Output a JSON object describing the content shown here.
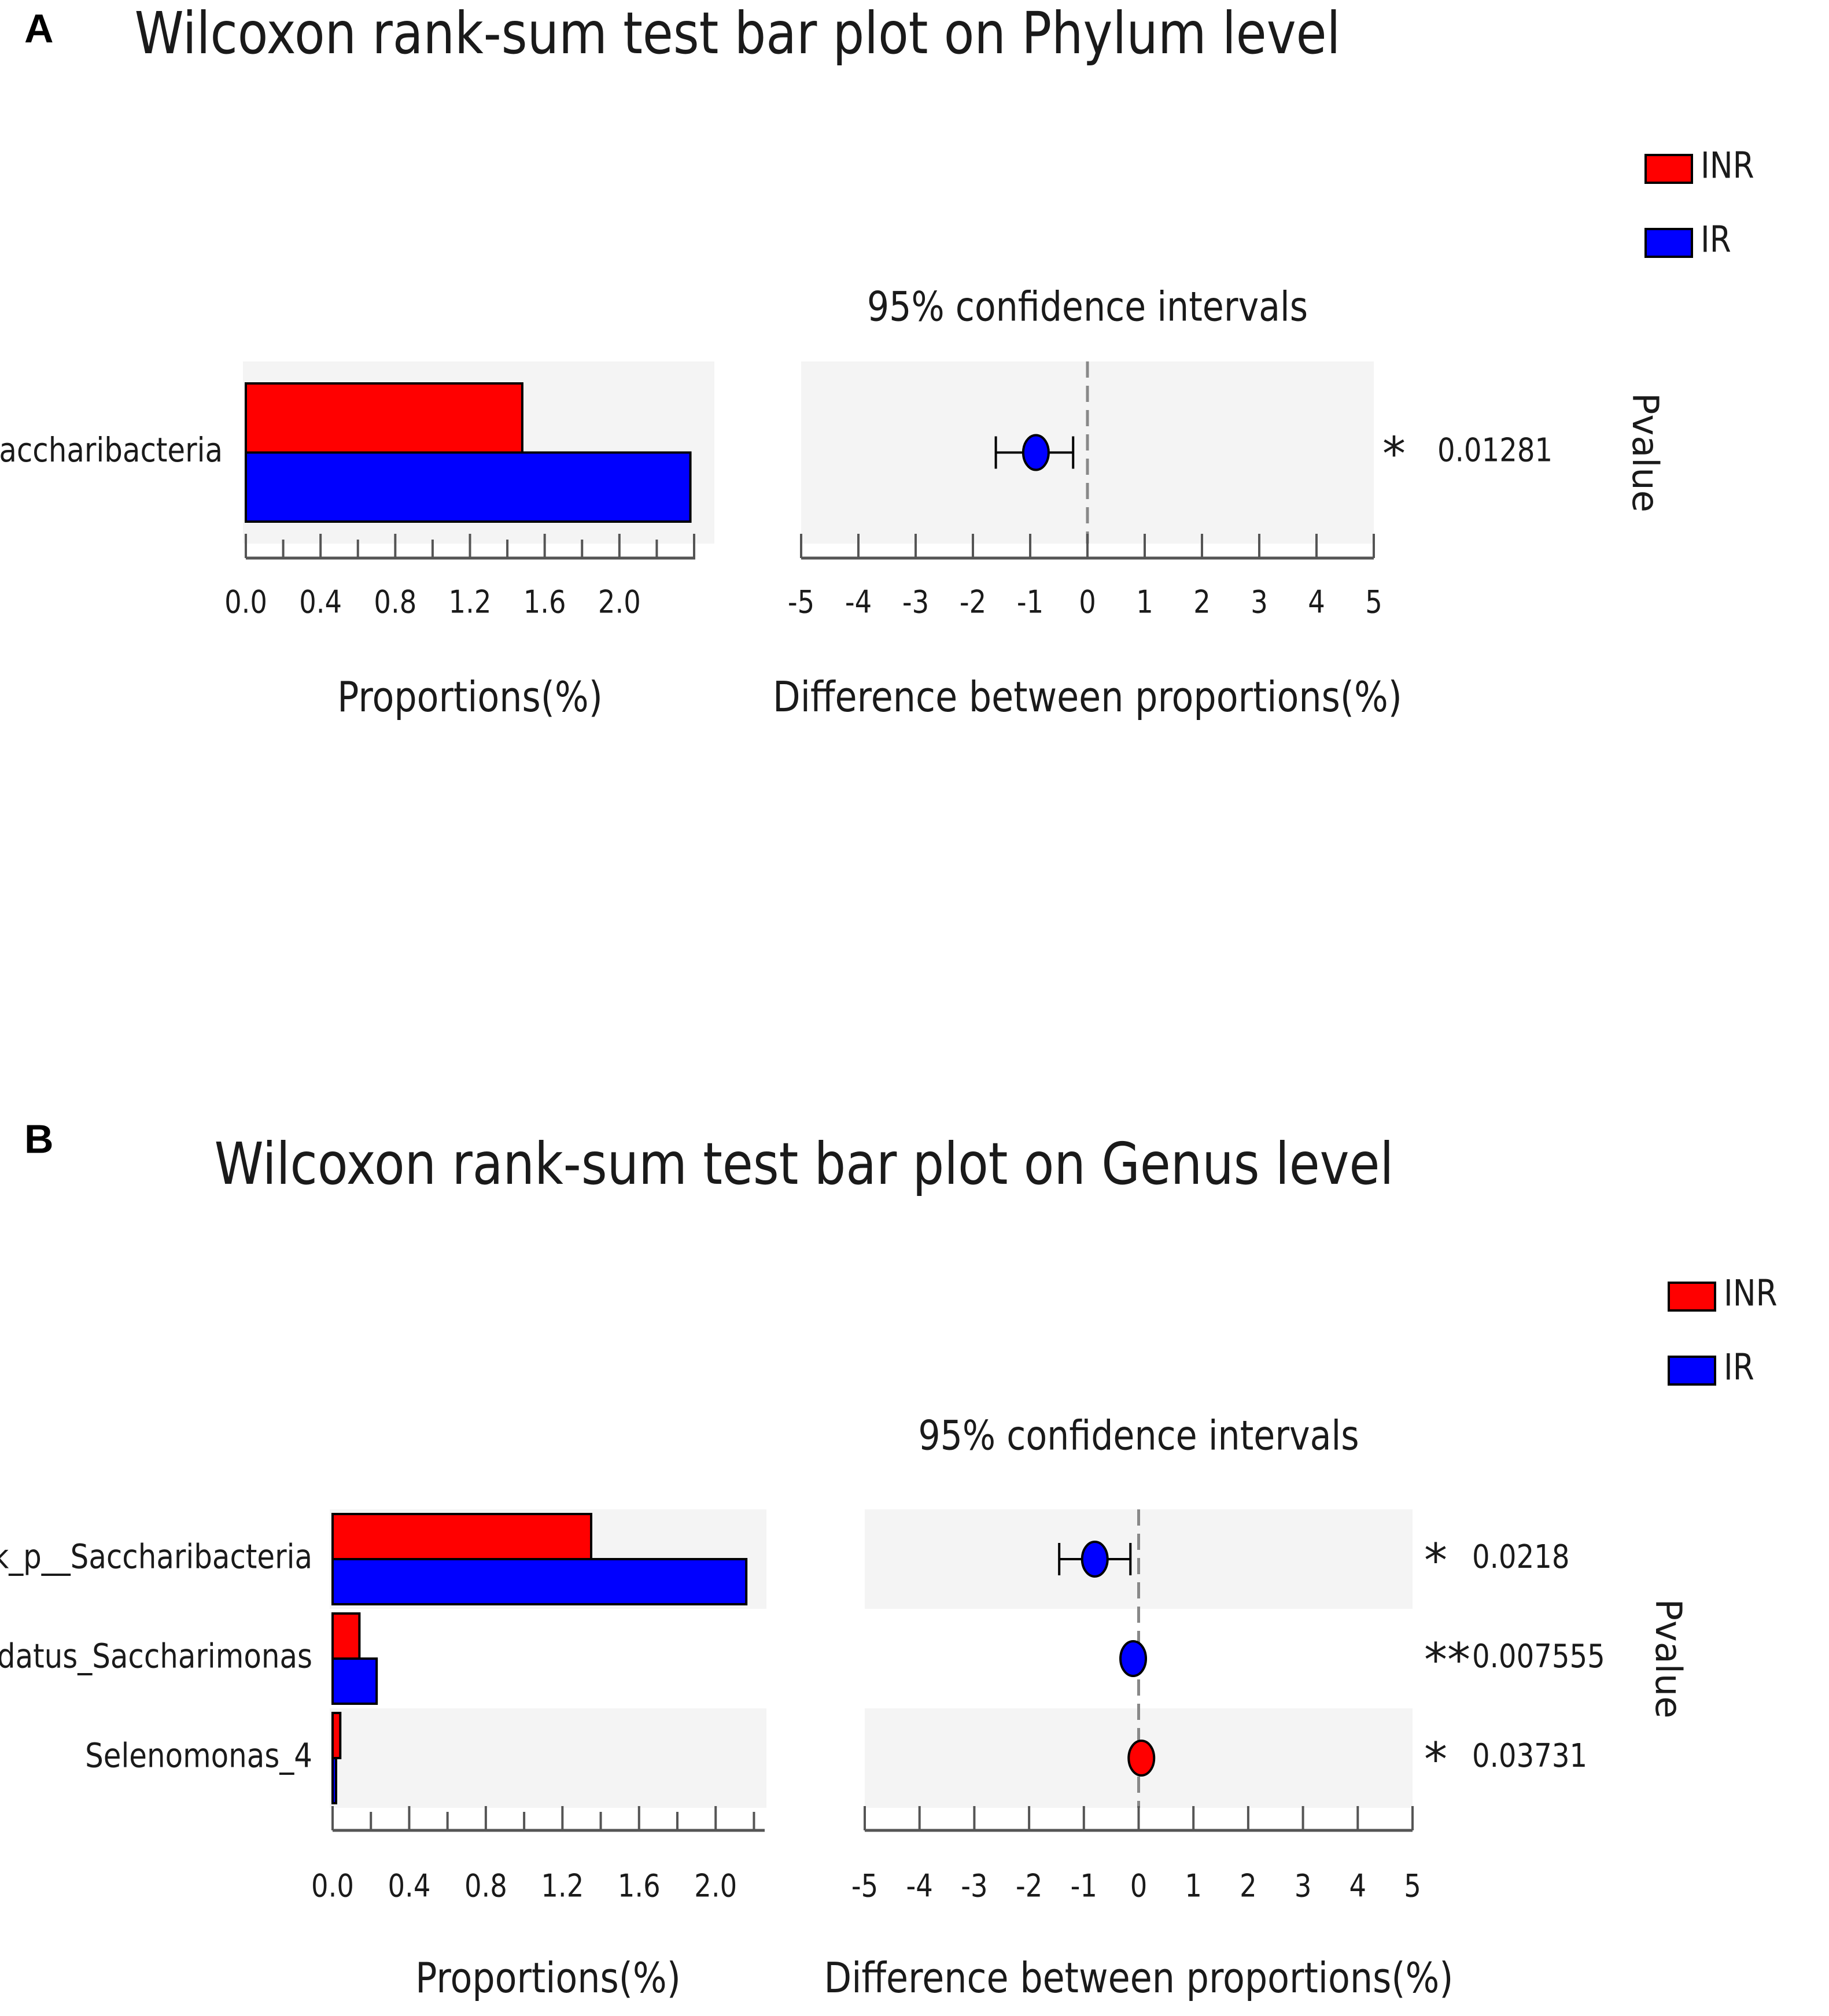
{
  "colors": {
    "INR": "#ff0000",
    "IR": "#0000ff",
    "panel_bg": "#f4f4f4",
    "star": "#f06a6a",
    "axis": "#555555"
  },
  "chart_data": [
    {
      "panel": "A",
      "type": "bar",
      "title": "Wilcoxon rank-sum test bar plot on Phylum level",
      "legend": [
        "INR",
        "IR"
      ],
      "categories": [
        "Saccharibacteria"
      ],
      "series": [
        {
          "name": "INR",
          "values": [
            1.48
          ]
        },
        {
          "name": "IR",
          "values": [
            2.38
          ]
        }
      ],
      "bar_xlim": [
        0,
        2.4
      ],
      "bar_ticks": [
        "0.0",
        "0.4",
        "0.8",
        "1.2",
        "1.6",
        "2.0"
      ],
      "bar_xlabel": "Proportions(%)",
      "ci_title": "95% confidence intervals",
      "ci_xlim": [
        -5,
        5
      ],
      "ci_ticks": [
        "-5",
        "-4",
        "-3",
        "-2",
        "-1",
        "0",
        "1",
        "2",
        "3",
        "4",
        "5"
      ],
      "ci_xlabel": "Difference between proportions(%)",
      "differences": [
        -0.9
      ],
      "ci_lower": [
        -1.6
      ],
      "ci_upper": [
        -0.25
      ],
      "point_group": [
        "IR"
      ],
      "stars": [
        "*"
      ],
      "pvalues": [
        "0.01281"
      ],
      "pvalue_label": "Pvalue"
    },
    {
      "panel": "B",
      "type": "bar",
      "title": "Wilcoxon rank-sum test bar plot on Genus level",
      "legend": [
        "INR",
        "IR"
      ],
      "categories": [
        "norank_p__Saccharibacteria",
        "Candidatus_Saccharimonas",
        "Selenomonas_4"
      ],
      "series": [
        {
          "name": "INR",
          "values": [
            1.35,
            0.14,
            0.04
          ]
        },
        {
          "name": "IR",
          "values": [
            2.16,
            0.23,
            0.01
          ]
        }
      ],
      "bar_xlim": [
        0,
        2.25
      ],
      "bar_ticks": [
        "0.0",
        "0.4",
        "0.8",
        "1.2",
        "1.6",
        "2.0"
      ],
      "bar_xlabel": "Proportions(%)",
      "ci_title": "95% confidence intervals",
      "ci_xlim": [
        -5,
        5
      ],
      "ci_ticks": [
        "-5",
        "-4",
        "-3",
        "-2",
        "-1",
        "0",
        "1",
        "2",
        "3",
        "4",
        "5"
      ],
      "ci_xlabel": "Difference between proportions(%)",
      "differences": [
        -0.8,
        -0.1,
        0.05
      ],
      "ci_lower": [
        -1.45,
        -0.15,
        0.0
      ],
      "ci_upper": [
        -0.15,
        -0.05,
        0.1
      ],
      "point_group": [
        "IR",
        "IR",
        "INR"
      ],
      "stars": [
        "*",
        "**",
        "*"
      ],
      "pvalues": [
        "0.0218",
        "0.007555",
        "0.03731"
      ],
      "pvalue_label": "Pvalue"
    }
  ]
}
